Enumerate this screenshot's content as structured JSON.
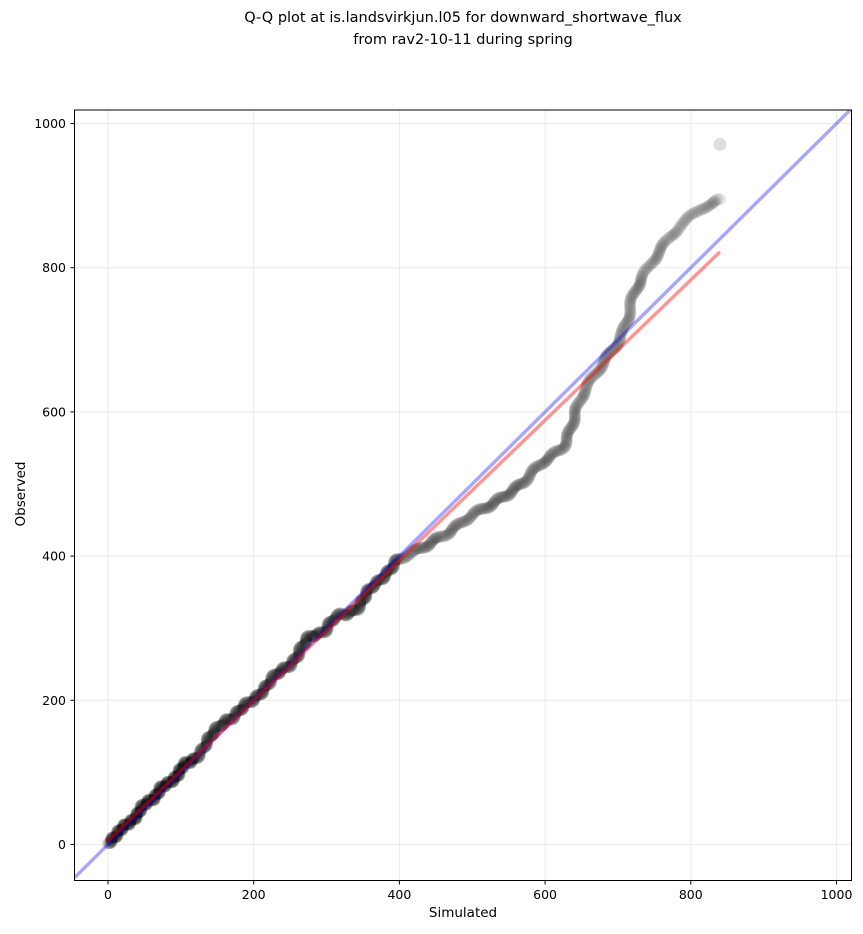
{
  "title": {
    "line1": "Q-Q plot at is.landsvirkjun.l05 for downward_shortwave_flux",
    "line2": "from rav2-10-11 during spring"
  },
  "chart_data": {
    "type": "scatter",
    "title": "Q-Q plot at is.landsvirkjun.l05 for downward_shortwave_flux from rav2-10-11 during spring",
    "xlabel": "Simulated",
    "ylabel": "Observed",
    "xlim": [
      -46,
      1021
    ],
    "ylim": [
      -50,
      1019
    ],
    "xticks": [
      0,
      200,
      400,
      600,
      800,
      1000
    ],
    "yticks": [
      0,
      200,
      400,
      600,
      800,
      1000
    ],
    "grid": true,
    "grid_color": "#ebebeb",
    "background": "#ffffff",
    "identity_line": {
      "name": "1:1 reference line",
      "color": "#0000ff",
      "opacity": 0.35,
      "from": [
        -46,
        -46
      ],
      "to": [
        1019,
        1019
      ]
    },
    "fit_line": {
      "name": "robust fit line",
      "color": "#ff0000",
      "opacity": 0.42,
      "from": [
        0,
        5
      ],
      "to": [
        840,
        822
      ]
    },
    "points_style": {
      "color": "#000000",
      "opacity": 0.1,
      "radius_px": 6
    },
    "outlier_point": [
      840,
      971
    ],
    "qq_points": [
      [
        0,
        2
      ],
      [
        1,
        3
      ],
      [
        2,
        4
      ],
      [
        3,
        6
      ],
      [
        4,
        7
      ],
      [
        5,
        8
      ],
      [
        6,
        9
      ],
      [
        7,
        10
      ],
      [
        8,
        11
      ],
      [
        9,
        12
      ],
      [
        10,
        13
      ],
      [
        11,
        14
      ],
      [
        12,
        15
      ],
      [
        13,
        16
      ],
      [
        14,
        17
      ],
      [
        16,
        18
      ],
      [
        17,
        19
      ],
      [
        18,
        20
      ],
      [
        19,
        21
      ],
      [
        20,
        22
      ],
      [
        21,
        23
      ],
      [
        22,
        24
      ],
      [
        24,
        25
      ],
      [
        26,
        27
      ],
      [
        28,
        29
      ],
      [
        30,
        31
      ],
      [
        33,
        34
      ],
      [
        36,
        38
      ],
      [
        40,
        42
      ],
      [
        44,
        47
      ],
      [
        48,
        52
      ],
      [
        52,
        56
      ],
      [
        56,
        60
      ],
      [
        60,
        63
      ],
      [
        64,
        67
      ],
      [
        68,
        72
      ],
      [
        72,
        77
      ],
      [
        76,
        80
      ],
      [
        80,
        82
      ],
      [
        84,
        85
      ],
      [
        88,
        89
      ],
      [
        92,
        94
      ],
      [
        96,
        99
      ],
      [
        100,
        104
      ],
      [
        104,
        109
      ],
      [
        108,
        112
      ],
      [
        112,
        114
      ],
      [
        116,
        117
      ],
      [
        120,
        121
      ],
      [
        125,
        127
      ],
      [
        130,
        133
      ],
      [
        135,
        140
      ],
      [
        140,
        147
      ],
      [
        145,
        155
      ],
      [
        150,
        162
      ],
      [
        155,
        168
      ],
      [
        160,
        172
      ],
      [
        165,
        174
      ],
      [
        170,
        176
      ],
      [
        175,
        180
      ],
      [
        180,
        184
      ],
      [
        185,
        189
      ],
      [
        190,
        194
      ],
      [
        195,
        198
      ],
      [
        200,
        202
      ],
      [
        205,
        207
      ],
      [
        210,
        212
      ],
      [
        215,
        217
      ],
      [
        220,
        222
      ],
      [
        225,
        228
      ],
      [
        230,
        234
      ],
      [
        235,
        239
      ],
      [
        240,
        243
      ],
      [
        245,
        247
      ],
      [
        250,
        251
      ],
      [
        255,
        256
      ],
      [
        260,
        262
      ],
      [
        264,
        268
      ],
      [
        268,
        275
      ],
      [
        272,
        282
      ],
      [
        276,
        288
      ],
      [
        280,
        291
      ],
      [
        284,
        292
      ],
      [
        288,
        293
      ],
      [
        292,
        294
      ],
      [
        296,
        296
      ],
      [
        300,
        300
      ],
      [
        304,
        305
      ],
      [
        308,
        310
      ],
      [
        312,
        314
      ],
      [
        316,
        316
      ],
      [
        320,
        318
      ],
      [
        324,
        319
      ],
      [
        328,
        320
      ],
      [
        332,
        322
      ],
      [
        336,
        324
      ],
      [
        340,
        327
      ],
      [
        344,
        331
      ],
      [
        348,
        336
      ],
      [
        352,
        342
      ],
      [
        356,
        348
      ],
      [
        360,
        353
      ],
      [
        364,
        358
      ],
      [
        368,
        362
      ],
      [
        372,
        366
      ],
      [
        376,
        371
      ],
      [
        380,
        375
      ],
      [
        384,
        379
      ],
      [
        388,
        383
      ],
      [
        392,
        388
      ],
      [
        396,
        392
      ],
      [
        400,
        395
      ],
      [
        406,
        398
      ],
      [
        412,
        401
      ],
      [
        418,
        404
      ],
      [
        424,
        407
      ],
      [
        430,
        411
      ],
      [
        436,
        415
      ],
      [
        442,
        419
      ],
      [
        448,
        423
      ],
      [
        454,
        427
      ],
      [
        460,
        430
      ],
      [
        466,
        433
      ],
      [
        472,
        437
      ],
      [
        479,
        441
      ],
      [
        486,
        446
      ],
      [
        493,
        451
      ],
      [
        500,
        456
      ],
      [
        507,
        460
      ],
      [
        513,
        463
      ],
      [
        519,
        467
      ],
      [
        525,
        471
      ],
      [
        531,
        475
      ],
      [
        537,
        480
      ],
      [
        543,
        484
      ],
      [
        549,
        488
      ],
      [
        555,
        492
      ],
      [
        561,
        496
      ],
      [
        567,
        500
      ],
      [
        573,
        505
      ],
      [
        579,
        511
      ],
      [
        585,
        517
      ],
      [
        591,
        523
      ],
      [
        597,
        529
      ],
      [
        603,
        534
      ],
      [
        609,
        539
      ],
      [
        614,
        543
      ],
      [
        619,
        547
      ],
      [
        623,
        551
      ],
      [
        627,
        558
      ],
      [
        630,
        566
      ],
      [
        633,
        574
      ],
      [
        636,
        582
      ],
      [
        639,
        590
      ],
      [
        642,
        598
      ],
      [
        645,
        606
      ],
      [
        648,
        613
      ],
      [
        651,
        620
      ],
      [
        655,
        628
      ],
      [
        659,
        635
      ],
      [
        663,
        642
      ],
      [
        667,
        649
      ],
      [
        671,
        656
      ],
      [
        675,
        662
      ],
      [
        679,
        668
      ],
      [
        683,
        674
      ],
      [
        687,
        680
      ],
      [
        691,
        686
      ],
      [
        695,
        692
      ],
      [
        699,
        698
      ],
      [
        703,
        704
      ],
      [
        707,
        711
      ],
      [
        710,
        718
      ],
      [
        713,
        725
      ],
      [
        715,
        732
      ],
      [
        717,
        740
      ],
      [
        719,
        748
      ],
      [
        721,
        756
      ],
      [
        723,
        763
      ],
      [
        725,
        770
      ],
      [
        728,
        776
      ],
      [
        731,
        782
      ],
      [
        734,
        788
      ],
      [
        737,
        794
      ],
      [
        740,
        799
      ],
      [
        743,
        804
      ],
      [
        746,
        809
      ],
      [
        749,
        814
      ],
      [
        752,
        818
      ],
      [
        755,
        822
      ],
      [
        758,
        826
      ],
      [
        761,
        830
      ],
      [
        764,
        834
      ],
      [
        768,
        839
      ],
      [
        772,
        844
      ],
      [
        776,
        848
      ],
      [
        780,
        852
      ],
      [
        785,
        857
      ],
      [
        790,
        861
      ],
      [
        795,
        865
      ],
      [
        800,
        869
      ],
      [
        805,
        873
      ],
      [
        810,
        877
      ],
      [
        815,
        881
      ],
      [
        820,
        884
      ],
      [
        825,
        887
      ],
      [
        830,
        889
      ],
      [
        834,
        891
      ],
      [
        837,
        893
      ],
      [
        840,
        895
      ]
    ]
  }
}
